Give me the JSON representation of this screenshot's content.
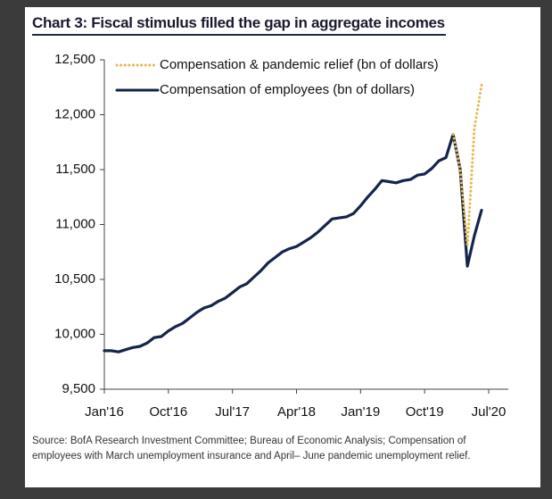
{
  "chart_data": {
    "type": "line",
    "title": "Chart 3: Fiscal stimulus filled the gap in aggregate incomes",
    "source": "Source: BofA Research Investment Committee; Bureau of Economic Analysis; Compensation of employees with March unemployment insurance and April– June pandemic unemployment relief.",
    "x": [
      "2016-01",
      "2016-02",
      "2016-03",
      "2016-04",
      "2016-05",
      "2016-06",
      "2016-07",
      "2016-08",
      "2016-09",
      "2016-10",
      "2016-11",
      "2016-12",
      "2017-01",
      "2017-02",
      "2017-03",
      "2017-04",
      "2017-05",
      "2017-06",
      "2017-07",
      "2017-08",
      "2017-09",
      "2017-10",
      "2017-11",
      "2017-12",
      "2018-01",
      "2018-02",
      "2018-03",
      "2018-04",
      "2018-05",
      "2018-06",
      "2018-07",
      "2018-08",
      "2018-09",
      "2018-10",
      "2018-11",
      "2018-12",
      "2019-01",
      "2019-02",
      "2019-03",
      "2019-04",
      "2019-05",
      "2019-06",
      "2019-07",
      "2019-08",
      "2019-09",
      "2019-10",
      "2019-11",
      "2019-12",
      "2020-01",
      "2020-02",
      "2020-03",
      "2020-04",
      "2020-05",
      "2020-06"
    ],
    "series": [
      {
        "name": "Compensation & pandemic relief (bn of dollars)",
        "color": "#e8b84a",
        "dash": true,
        "values": [
          null,
          null,
          null,
          null,
          null,
          null,
          null,
          null,
          null,
          null,
          null,
          null,
          null,
          null,
          null,
          null,
          null,
          null,
          null,
          null,
          null,
          null,
          null,
          null,
          null,
          null,
          null,
          null,
          null,
          null,
          null,
          null,
          null,
          null,
          null,
          null,
          null,
          null,
          null,
          null,
          null,
          null,
          null,
          null,
          null,
          null,
          null,
          null,
          null,
          11820,
          11500,
          10800,
          11880,
          12270
        ]
      },
      {
        "name": "Compensation of employees (bn of dollars)",
        "color": "#14254a",
        "dash": false,
        "values": [
          9850,
          9850,
          9840,
          9860,
          9880,
          9890,
          9920,
          9970,
          9980,
          10030,
          10070,
          10100,
          10150,
          10200,
          10240,
          10260,
          10300,
          10330,
          10380,
          10430,
          10460,
          10520,
          10580,
          10650,
          10700,
          10750,
          10780,
          10800,
          10840,
          10880,
          10930,
          10990,
          11050,
          11060,
          11070,
          11100,
          11170,
          11250,
          11320,
          11400,
          11390,
          11380,
          11400,
          11410,
          11450,
          11460,
          11510,
          11580,
          11610,
          11820,
          11500,
          10620,
          10900,
          11130
        ]
      }
    ],
    "xlim": [
      "2016-01",
      "2020-07"
    ],
    "xticks": [
      {
        "value": "2016-01",
        "label": "Jan'16"
      },
      {
        "value": "2016-10",
        "label": "Oct'16"
      },
      {
        "value": "2017-07",
        "label": "Jul'17"
      },
      {
        "value": "2018-04",
        "label": "Apr'18"
      },
      {
        "value": "2019-01",
        "label": "Jan'19"
      },
      {
        "value": "2019-10",
        "label": "Oct'19"
      },
      {
        "value": "2020-07",
        "label": "Jul'20"
      }
    ],
    "ylim": [
      9500,
      12500
    ],
    "yticks": [
      {
        "value": 9500,
        "label": "9,500"
      },
      {
        "value": 10000,
        "label": "10,000"
      },
      {
        "value": 10500,
        "label": "10,500"
      },
      {
        "value": 11000,
        "label": "11,000"
      },
      {
        "value": 11500,
        "label": "11,500"
      },
      {
        "value": 12000,
        "label": "12,000"
      },
      {
        "value": 12500,
        "label": "12,500"
      }
    ],
    "grid": false,
    "legend": "top-left"
  }
}
